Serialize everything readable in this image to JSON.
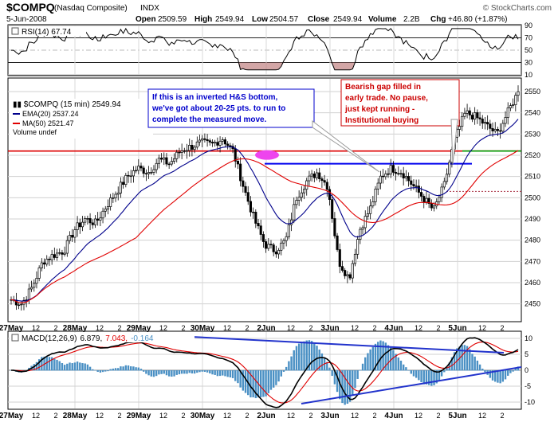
{
  "header": {
    "symbol": "$COMPQ",
    "name": "(Nasdaq Composite)",
    "exchange": "INDX",
    "date": "5-Jun-2008",
    "open_label": "Open",
    "open": "2509.59",
    "high_label": "High",
    "high": "2549.94",
    "low_label": "Low",
    "low": "2504.57",
    "close_label": "Close",
    "close": "2549.94",
    "volume_label": "Volume",
    "volume": "2.2B",
    "chg_label": "Chg",
    "chg": "+46.80 (+1.87%)",
    "watermark": "© StockCharts.com"
  },
  "rsi": {
    "label": "RSI(14) 67.74",
    "ticks": [
      "90",
      "70",
      "50",
      "30",
      "10"
    ],
    "levels": [
      90,
      70,
      50,
      30,
      10
    ]
  },
  "legend": {
    "price": "$COMPQ (15 min) 2549.94",
    "ema": "EMA(20) 2537.24",
    "ma": "MA(50) 2521.47",
    "volume": "Volume undef"
  },
  "annotations": {
    "note1_lines": [
      "If this is an inverted H&S bottom,",
      "we've got about 20-25 pts. to run to",
      "complete the measured move."
    ],
    "note2_lines": [
      "Bearish gap filled in",
      "early trade.  No pause,",
      "just kept running -",
      "Institutional buying"
    ]
  },
  "macd": {
    "label_prefix": "MACD(12,26,9)",
    "value": "6.879,",
    "signal": "7.043,",
    "hist": "-0.164",
    "ticks": [
      "10",
      "5",
      "0",
      "-5",
      "-10"
    ]
  },
  "colors": {
    "price": "#000000",
    "ema": "#00008b",
    "ma": "#e00000",
    "resistance": "#dd0000",
    "neckline": "#0000ee",
    "support_green": "#009900",
    "macd_hist": "#4a90c4",
    "trendline": "#2233cc",
    "highlight": "#ee44ee",
    "note_border": "#0000cc",
    "note2_fill": "#cc0000"
  },
  "x_axis": {
    "labels": [
      "27May",
      "12",
      "2",
      "28May",
      "12",
      "2",
      "29May",
      "12",
      "2",
      "30May",
      "12",
      "2",
      "2Jun",
      "12",
      "2",
      "3Jun",
      "12",
      "2",
      "4Jun",
      "12",
      "2",
      "5Jun",
      "12",
      "2"
    ]
  },
  "chart_data": [
    {
      "type": "line",
      "title": "RSI(14)",
      "ylim": [
        10,
        90
      ],
      "y_ticks": [
        90,
        70,
        50,
        30,
        10
      ],
      "series": [
        {
          "name": "RSI(14)",
          "last": 67.74
        }
      ]
    },
    {
      "type": "candlestick",
      "title": "$COMPQ (15 min)",
      "ylim": [
        2442,
        2556
      ],
      "y_ticks": [
        2450,
        2460,
        2470,
        2480,
        2490,
        2500,
        2510,
        2520,
        2530,
        2540,
        2550
      ],
      "x_categories": [
        "27May",
        "28May",
        "29May",
        "30May",
        "2Jun",
        "3Jun",
        "4Jun",
        "5Jun"
      ],
      "close_path": [
        2452,
        2450,
        2458,
        2470,
        2473,
        2475,
        2485,
        2490,
        2488,
        2496,
        2503,
        2510,
        2514,
        2512,
        2518,
        2516,
        2522,
        2524,
        2526,
        2525,
        2528,
        2522,
        2505,
        2490,
        2478,
        2475,
        2480,
        2500,
        2508,
        2512,
        2505,
        2470,
        2462,
        2485,
        2495,
        2510,
        2514,
        2512,
        2506,
        2500,
        2494,
        2506,
        2528,
        2540,
        2538,
        2534,
        2530,
        2540,
        2549.94
      ],
      "series": [
        {
          "name": "EMA(20)",
          "last": 2537.24
        },
        {
          "name": "MA(50)",
          "last": 2521.47
        }
      ],
      "resistance_level": 2522,
      "neckline_level": 2516,
      "last_close": 2549.94
    },
    {
      "type": "line",
      "title": "MACD(12,26,9)",
      "ylim": [
        -12,
        12
      ],
      "y_ticks": [
        10,
        5,
        0,
        -5,
        -10
      ],
      "series": [
        {
          "name": "MACD",
          "last": 6.879
        },
        {
          "name": "Signal",
          "last": 7.043
        },
        {
          "name": "Histogram",
          "last": -0.164
        }
      ]
    }
  ]
}
